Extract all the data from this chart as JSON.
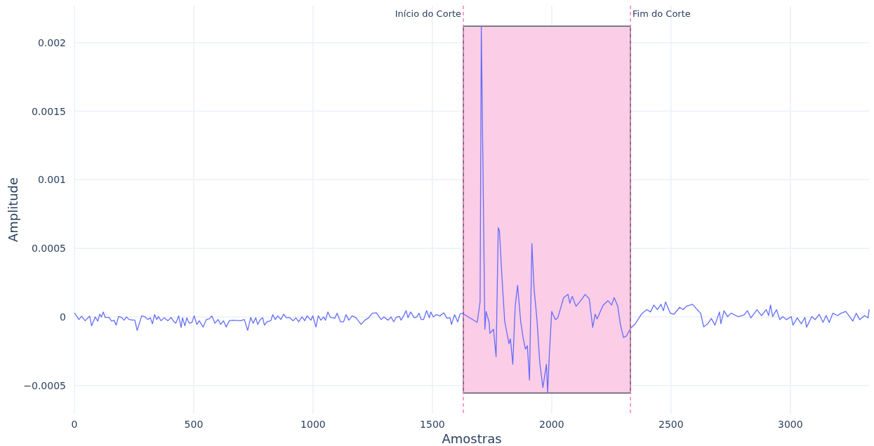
{
  "chart_data": {
    "type": "line",
    "xlabel": "Amostras",
    "ylabel": "Amplitude",
    "xlim": [
      0,
      3330
    ],
    "ylim": [
      -0.000706,
      0.00227
    ],
    "xticks": [
      0,
      500,
      1000,
      1500,
      2000,
      2500,
      3000
    ],
    "yticks": [
      {
        "value": -0.0005,
        "label": "−0.0005"
      },
      0,
      0.0005,
      0.001,
      0.0015,
      0.002
    ],
    "grid": true,
    "ref_lines": [
      {
        "axis": "x",
        "value": 1630,
        "label": "Início do Corte",
        "color": "#ff7fbf",
        "line_style": "dashed"
      },
      {
        "axis": "x",
        "value": 2330,
        "label": "Fim do Corte",
        "color": "#ff7fbf",
        "line_style": "dashed"
      }
    ],
    "bands": [
      {
        "axis": "x",
        "from": 1630,
        "to": 2330,
        "color": "#fccde6"
      }
    ],
    "series": [
      {
        "color": "#636efa",
        "x": [
          1,
          19,
          30,
          45,
          64,
          72,
          87,
          98,
          106,
          113,
          121,
          129,
          145,
          156,
          166,
          175,
          185,
          198,
          208,
          218,
          229,
          243,
          253,
          263,
          282,
          297,
          308,
          318,
          327,
          336,
          345,
          352,
          363,
          376,
          392,
          405,
          415,
          425,
          437,
          447,
          453,
          463,
          471,
          481,
          492,
          502,
          513,
          523,
          539,
          553,
          565,
          576,
          589,
          602,
          613,
          625,
          636,
          649,
          663,
          696,
          712,
          726,
          739,
          749,
          760,
          768,
          779,
          789,
          796,
          807,
          823,
          831,
          842,
          852,
          865,
          877,
          888,
          901,
          917,
          928,
          940,
          954,
          965,
          975,
          991,
          999,
          1012,
          1022,
          1033,
          1044,
          1052,
          1062,
          1073,
          1091,
          1101,
          1115,
          1128,
          1138,
          1150,
          1164,
          1180,
          1201,
          1217,
          1233,
          1248,
          1266,
          1285,
          1297,
          1314,
          1327,
          1338,
          1348,
          1362,
          1369,
          1382,
          1390,
          1398,
          1409,
          1424,
          1435,
          1444,
          1453,
          1463,
          1476,
          1487,
          1493,
          1504,
          1516,
          1532,
          1548,
          1561,
          1574,
          1580,
          1593,
          1606,
          1616,
          1627,
          1632,
          1688,
          1700,
          1705,
          1720,
          1725,
          1738,
          1741,
          1756,
          1767,
          1776,
          1781,
          1792,
          1803,
          1821,
          1827,
          1837,
          1847,
          1857,
          1870,
          1880,
          1890,
          1898,
          1907,
          1917,
          1926,
          1938,
          1950,
          1963,
          1978,
          1983,
          1990,
          2000,
          2006,
          2016,
          2026,
          2050,
          2068,
          2076,
          2086,
          2102,
          2128,
          2140,
          2157,
          2172,
          2182,
          2190,
          2216,
          2236,
          2251,
          2262,
          2277,
          2288,
          2301,
          2313,
          2330,
          2350,
          2379,
          2399,
          2414,
          2428,
          2443,
          2458,
          2468,
          2477,
          2497,
          2512,
          2536,
          2551,
          2565,
          2590,
          2610,
          2624,
          2637,
          2654,
          2669,
          2684,
          2703,
          2709,
          2722,
          2737,
          2752,
          2781,
          2806,
          2820,
          2835,
          2860,
          2879,
          2899,
          2909,
          2917,
          2926,
          2942,
          2956,
          2968,
          2983,
          3004,
          3011,
          3029,
          3046,
          3061,
          3068,
          3090,
          3104,
          3121,
          3137,
          3150,
          3163,
          3178,
          3198,
          3213,
          3232,
          3245,
          3262,
          3276,
          3291,
          3311,
          3326,
          3330
        ],
        "values": [
          2.7e-05,
          -1.9e-05,
          5e-06,
          -2.8e-05,
          6e-06,
          -6.5e-05,
          0,
          -3e-05,
          2e-05,
          0,
          3.6e-05,
          -4e-06,
          -4e-06,
          -3.1e-05,
          -2.4e-05,
          -6e-05,
          3e-06,
          -4e-06,
          -2.4e-05,
          0,
          -1.9e-05,
          -2.3e-05,
          -2.3e-05,
          -9.8e-05,
          8e-06,
          0,
          -1.9e-05,
          -6e-06,
          -5e-05,
          1.7e-05,
          -1.9e-05,
          3e-06,
          -2.8e-05,
          -6e-06,
          -2.8e-05,
          -4e-06,
          -3e-05,
          -4.6e-05,
          8e-06,
          -7.7e-05,
          -6e-06,
          -6.5e-05,
          -6e-06,
          -4.6e-05,
          -4.1e-05,
          8e-06,
          -5.5e-05,
          -2.8e-05,
          -7.4e-05,
          -1.9e-05,
          -1.4e-05,
          7e-06,
          -4.6e-05,
          -1.9e-05,
          -5.5e-05,
          -2.8e-05,
          -7.4e-05,
          -2.8e-05,
          -2.4e-05,
          -2.8e-05,
          -1.9e-05,
          -9.8e-05,
          -4e-06,
          -4.6e-05,
          -6e-06,
          -5.5e-05,
          -1.9e-05,
          -6e-06,
          -6e-05,
          -3.6e-05,
          -2.8e-05,
          1.7e-05,
          -1.9e-05,
          8e-06,
          -1.9e-05,
          2e-05,
          -6e-06,
          -4e-06,
          -2.8e-05,
          -6e-06,
          -3.6e-05,
          0,
          -2.8e-05,
          8e-06,
          -2.4e-05,
          8e-06,
          -7.4e-05,
          8e-06,
          -2.4e-05,
          0,
          -2.4e-05,
          3.6e-05,
          -4e-06,
          -1e-05,
          2.7e-05,
          -3.6e-05,
          -3.6e-05,
          1.7e-05,
          -2.4e-05,
          8e-06,
          -6e-06,
          -5.5e-05,
          -2.4e-05,
          -6e-06,
          2.7e-05,
          3e-05,
          -1.9e-05,
          0,
          -2.4e-05,
          0,
          -3.6e-05,
          -4e-06,
          4e-06,
          -2.4e-05,
          1.7e-05,
          4.6e-05,
          -6e-06,
          3.6e-05,
          -6e-06,
          0,
          2.7e-05,
          -1.9e-05,
          -1.9e-05,
          4.6e-05,
          -6e-06,
          3.6e-05,
          0,
          1.7e-05,
          8e-06,
          3e-05,
          -1e-05,
          -6e-06,
          -5.5e-05,
          1.7e-05,
          -3.6e-05,
          2.2e-05,
          2.7e-05,
          2e-05,
          -4e-05,
          0.00011,
          0.00212,
          -9e-05,
          4e-05,
          -4e-05,
          -0.00012,
          -9e-05,
          -0.00029,
          0.00065,
          0.00063,
          0.000276,
          -3e-05,
          -0.000195,
          -0.00016,
          -0.000345,
          7.7e-05,
          0.00023,
          -3e-05,
          -0.00015,
          -0.000235,
          -0.00021,
          -0.00046,
          0.000535,
          0.00021,
          -1.5e-05,
          -0.00033,
          -0.000515,
          -0.000345,
          -0.000555,
          -0.00028,
          4e-05,
          1.5e-05,
          -2e-05,
          -5e-06,
          0.00014,
          0.000165,
          0.0001,
          0.00015,
          7.7e-05,
          0.000133,
          0.000164,
          0.000133,
          -7.7e-05,
          2e-05,
          -1.5e-05,
          8.7e-05,
          0.000118,
          8.7e-05,
          0.00014,
          7.7e-05,
          -5.7e-05,
          -0.00015,
          -0.00014,
          -8.5e-05,
          -5e-05,
          2.7e-05,
          5.3e-05,
          3.6e-05,
          8.7e-05,
          5.3e-05,
          9.2e-05,
          4.5e-05,
          0.000109,
          2.7e-05,
          1.9e-05,
          7e-05,
          5.3e-05,
          7.8e-05,
          9.2e-05,
          5.3e-05,
          2.7e-05,
          -7.2e-05,
          -5e-05,
          -1.1e-05,
          -6e-05,
          3.6e-05,
          -5e-05,
          4.5e-05,
          2e-06,
          2.7e-05,
          2e-06,
          1.4e-05,
          4.5e-05,
          -7e-06,
          5.3e-05,
          1e-05,
          5.3e-05,
          1e-05,
          8.7e-05,
          2e-06,
          5.3e-05,
          -2e-05,
          2e-06,
          -2e-05,
          2e-06,
          -6e-05,
          -7e-06,
          -5e-05,
          -4e-06,
          -7.5e-05,
          2e-06,
          -2e-05,
          1.9e-05,
          -4e-05,
          1e-05,
          -4e-05,
          2.7e-05,
          1e-05,
          2.7e-05,
          4e-05,
          1e-05,
          -3e-05,
          2.7e-05,
          -2e-05,
          1e-05,
          -7e-06,
          5.3e-05
        ]
      }
    ]
  }
}
